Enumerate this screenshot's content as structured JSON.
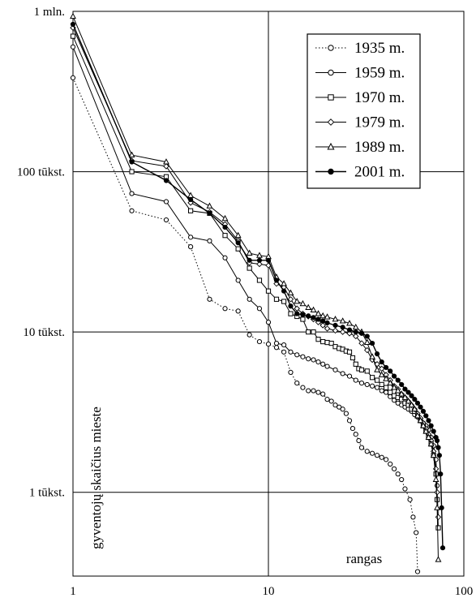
{
  "chart_data": {
    "type": "line",
    "title": "",
    "xlabel": "rangas",
    "ylabel": "gyventojų skaičius mieste",
    "x_scale": "log",
    "y_scale": "log",
    "xlim": [
      1,
      100
    ],
    "ylim": [
      300,
      1000000
    ],
    "grid": true,
    "legend_position": "top-right",
    "x_ticks": [
      {
        "value": 1,
        "label": "1"
      },
      {
        "value": 10,
        "label": "10"
      },
      {
        "value": 100,
        "label": "100"
      }
    ],
    "y_ticks": [
      {
        "value": 1000000,
        "label": "1 mln."
      },
      {
        "value": 100000,
        "label": "100 tūkst."
      },
      {
        "value": 10000,
        "label": "10 tūkst."
      },
      {
        "value": 1000,
        "label": "1 tūkst."
      }
    ],
    "series": [
      {
        "name": "1935 m.",
        "marker": "circle-open",
        "line": "dotted",
        "points": [
          [
            1,
            385000
          ],
          [
            2,
            57000
          ],
          [
            3,
            50000
          ],
          [
            4,
            34000
          ],
          [
            5,
            16000
          ],
          [
            6,
            14000
          ],
          [
            7,
            13500
          ],
          [
            8,
            9600
          ],
          [
            9,
            8700
          ],
          [
            10,
            8400
          ],
          [
            11,
            8000
          ],
          [
            12,
            7500
          ],
          [
            13,
            5600
          ],
          [
            14,
            4800
          ],
          [
            15,
            4500
          ],
          [
            16,
            4300
          ],
          [
            17,
            4300
          ],
          [
            18,
            4200
          ],
          [
            19,
            4100
          ],
          [
            20,
            3800
          ],
          [
            21,
            3700
          ],
          [
            22,
            3500
          ],
          [
            23,
            3400
          ],
          [
            24,
            3300
          ],
          [
            25,
            3100
          ],
          [
            26,
            2800
          ],
          [
            27,
            2500
          ],
          [
            28,
            2300
          ],
          [
            29,
            2100
          ],
          [
            30,
            1900
          ],
          [
            32,
            1800
          ],
          [
            34,
            1750
          ],
          [
            36,
            1700
          ],
          [
            38,
            1650
          ],
          [
            40,
            1600
          ],
          [
            42,
            1500
          ],
          [
            44,
            1400
          ],
          [
            46,
            1300
          ],
          [
            48,
            1200
          ],
          [
            50,
            1050
          ],
          [
            53,
            900
          ],
          [
            55,
            700
          ],
          [
            57,
            560
          ],
          [
            58,
            320
          ]
        ]
      },
      {
        "name": "1959 m.",
        "marker": "circle-open",
        "line": "solid",
        "points": [
          [
            1,
            600000
          ],
          [
            2,
            73000
          ],
          [
            3,
            65000
          ],
          [
            4,
            39000
          ],
          [
            5,
            37000
          ],
          [
            6,
            29000
          ],
          [
            7,
            21000
          ],
          [
            8,
            16000
          ],
          [
            9,
            14000
          ],
          [
            10,
            11500
          ],
          [
            11,
            8500
          ],
          [
            12,
            8300
          ],
          [
            13,
            7500
          ],
          [
            14,
            7200
          ],
          [
            15,
            7000
          ],
          [
            16,
            6800
          ],
          [
            17,
            6700
          ],
          [
            18,
            6500
          ],
          [
            19,
            6300
          ],
          [
            20,
            6100
          ],
          [
            22,
            5800
          ],
          [
            24,
            5500
          ],
          [
            26,
            5300
          ],
          [
            28,
            5000
          ],
          [
            30,
            4800
          ],
          [
            32,
            4700
          ],
          [
            34,
            4600
          ],
          [
            36,
            4500
          ],
          [
            38,
            4300
          ],
          [
            40,
            4200
          ],
          [
            42,
            3950
          ],
          [
            44,
            3750
          ],
          [
            46,
            3600
          ],
          [
            48,
            3500
          ],
          [
            50,
            3400
          ],
          [
            52,
            3300
          ],
          [
            54,
            3200
          ],
          [
            56,
            3050
          ],
          [
            58,
            2950
          ],
          [
            60,
            2800
          ],
          [
            62,
            2700
          ],
          [
            64,
            2600
          ],
          [
            66,
            2450
          ],
          [
            68,
            2200
          ],
          [
            70,
            1950
          ],
          [
            72,
            1600
          ],
          [
            73,
            1100
          ]
        ]
      },
      {
        "name": "1970 m.",
        "marker": "square-open",
        "line": "solid",
        "points": [
          [
            1,
            700000
          ],
          [
            2,
            100000
          ],
          [
            3,
            93000
          ],
          [
            4,
            57000
          ],
          [
            5,
            55000
          ],
          [
            6,
            40000
          ],
          [
            7,
            33000
          ],
          [
            8,
            25000
          ],
          [
            9,
            21000
          ],
          [
            10,
            18000
          ],
          [
            11,
            16000
          ],
          [
            12,
            15500
          ],
          [
            13,
            13000
          ],
          [
            14,
            12500
          ],
          [
            15,
            12000
          ],
          [
            16,
            10000
          ],
          [
            17,
            10000
          ],
          [
            18,
            9000
          ],
          [
            19,
            8700
          ],
          [
            20,
            8600
          ],
          [
            21,
            8500
          ],
          [
            22,
            8100
          ],
          [
            23,
            7900
          ],
          [
            24,
            7800
          ],
          [
            25,
            7600
          ],
          [
            26,
            7500
          ],
          [
            27,
            6900
          ],
          [
            28,
            6300
          ],
          [
            29,
            5900
          ],
          [
            30,
            5800
          ],
          [
            32,
            5700
          ],
          [
            34,
            5200
          ],
          [
            36,
            5000
          ],
          [
            38,
            4700
          ],
          [
            40,
            4500
          ],
          [
            42,
            4200
          ],
          [
            44,
            4000
          ],
          [
            46,
            3900
          ],
          [
            48,
            3800
          ],
          [
            50,
            3600
          ],
          [
            52,
            3500
          ],
          [
            54,
            3300
          ],
          [
            56,
            3200
          ],
          [
            58,
            3000
          ],
          [
            60,
            2800
          ],
          [
            62,
            2600
          ],
          [
            64,
            2400
          ],
          [
            66,
            2200
          ],
          [
            68,
            2000
          ],
          [
            70,
            1700
          ],
          [
            72,
            1300
          ],
          [
            73,
            900
          ],
          [
            74,
            600
          ]
        ]
      },
      {
        "name": "1979 m.",
        "marker": "diamond-open",
        "line": "solid",
        "points": [
          [
            1,
            790000
          ],
          [
            2,
            117000
          ],
          [
            3,
            108000
          ],
          [
            4,
            64000
          ],
          [
            5,
            56000
          ],
          [
            6,
            47000
          ],
          [
            7,
            37000
          ],
          [
            8,
            27000
          ],
          [
            9,
            26500
          ],
          [
            10,
            26000
          ],
          [
            11,
            20000
          ],
          [
            12,
            19000
          ],
          [
            13,
            16000
          ],
          [
            14,
            14000
          ],
          [
            15,
            13000
          ],
          [
            16,
            12500
          ],
          [
            17,
            12000
          ],
          [
            18,
            11500
          ],
          [
            19,
            11000
          ],
          [
            20,
            10500
          ],
          [
            22,
            10200
          ],
          [
            24,
            10000
          ],
          [
            26,
            9800
          ],
          [
            28,
            9400
          ],
          [
            30,
            8500
          ],
          [
            32,
            7700
          ],
          [
            34,
            6700
          ],
          [
            36,
            6300
          ],
          [
            38,
            5900
          ],
          [
            40,
            5400
          ],
          [
            42,
            5000
          ],
          [
            44,
            4600
          ],
          [
            46,
            4400
          ],
          [
            48,
            4100
          ],
          [
            50,
            3900
          ],
          [
            52,
            3700
          ],
          [
            54,
            3500
          ],
          [
            56,
            3300
          ],
          [
            58,
            3100
          ],
          [
            60,
            2900
          ],
          [
            62,
            2700
          ],
          [
            64,
            2500
          ],
          [
            66,
            2300
          ],
          [
            68,
            2100
          ],
          [
            70,
            1800
          ],
          [
            72,
            1400
          ],
          [
            73,
            1000
          ],
          [
            74,
            700
          ]
        ]
      },
      {
        "name": "1989 m.",
        "marker": "triangle-open",
        "line": "solid",
        "points": [
          [
            1,
            930000
          ],
          [
            2,
            127000
          ],
          [
            3,
            115000
          ],
          [
            4,
            71000
          ],
          [
            5,
            61000
          ],
          [
            6,
            51000
          ],
          [
            7,
            40000
          ],
          [
            8,
            31000
          ],
          [
            9,
            30000
          ],
          [
            10,
            29500
          ],
          [
            11,
            22000
          ],
          [
            12,
            20000
          ],
          [
            13,
            17500
          ],
          [
            14,
            15500
          ],
          [
            15,
            15000
          ],
          [
            16,
            14200
          ],
          [
            17,
            13700
          ],
          [
            18,
            13000
          ],
          [
            19,
            12600
          ],
          [
            20,
            12400
          ],
          [
            22,
            12000
          ],
          [
            24,
            11700
          ],
          [
            26,
            11300
          ],
          [
            28,
            10700
          ],
          [
            30,
            10000
          ],
          [
            32,
            8600
          ],
          [
            34,
            7000
          ],
          [
            36,
            5800
          ],
          [
            38,
            5400
          ],
          [
            40,
            5100
          ],
          [
            42,
            4800
          ],
          [
            44,
            4500
          ],
          [
            46,
            4300
          ],
          [
            48,
            4100
          ],
          [
            50,
            3900
          ],
          [
            52,
            3700
          ],
          [
            54,
            3500
          ],
          [
            56,
            3300
          ],
          [
            58,
            3000
          ],
          [
            60,
            2800
          ],
          [
            62,
            2600
          ],
          [
            64,
            2400
          ],
          [
            66,
            2200
          ],
          [
            68,
            2000
          ],
          [
            70,
            1700
          ],
          [
            72,
            1200
          ],
          [
            73,
            800
          ],
          [
            74,
            380
          ]
        ]
      },
      {
        "name": "2001 m.",
        "marker": "circle-filled",
        "line": "solid",
        "points": [
          [
            1,
            830000
          ],
          [
            2,
            115000
          ],
          [
            3,
            88000
          ],
          [
            4,
            67000
          ],
          [
            5,
            55000
          ],
          [
            6,
            45000
          ],
          [
            7,
            36000
          ],
          [
            8,
            28000
          ],
          [
            9,
            28000
          ],
          [
            10,
            28000
          ],
          [
            11,
            21000
          ],
          [
            12,
            18000
          ],
          [
            13,
            14500
          ],
          [
            14,
            13000
          ],
          [
            15,
            12800
          ],
          [
            16,
            12600
          ],
          [
            17,
            12300
          ],
          [
            18,
            12000
          ],
          [
            19,
            11700
          ],
          [
            20,
            11400
          ],
          [
            22,
            11000
          ],
          [
            24,
            10700
          ],
          [
            26,
            10300
          ],
          [
            28,
            10000
          ],
          [
            30,
            9800
          ],
          [
            32,
            9400
          ],
          [
            34,
            8500
          ],
          [
            36,
            7300
          ],
          [
            38,
            6500
          ],
          [
            40,
            6000
          ],
          [
            42,
            5700
          ],
          [
            44,
            5300
          ],
          [
            46,
            5000
          ],
          [
            48,
            4700
          ],
          [
            50,
            4400
          ],
          [
            52,
            4200
          ],
          [
            54,
            4000
          ],
          [
            56,
            3800
          ],
          [
            58,
            3600
          ],
          [
            60,
            3400
          ],
          [
            62,
            3200
          ],
          [
            64,
            3000
          ],
          [
            66,
            2800
          ],
          [
            68,
            2600
          ],
          [
            70,
            2400
          ],
          [
            72,
            2200
          ],
          [
            73,
            2100
          ],
          [
            74,
            1900
          ],
          [
            75,
            1700
          ],
          [
            76,
            1300
          ],
          [
            77,
            800
          ],
          [
            78,
            450
          ]
        ]
      }
    ]
  }
}
